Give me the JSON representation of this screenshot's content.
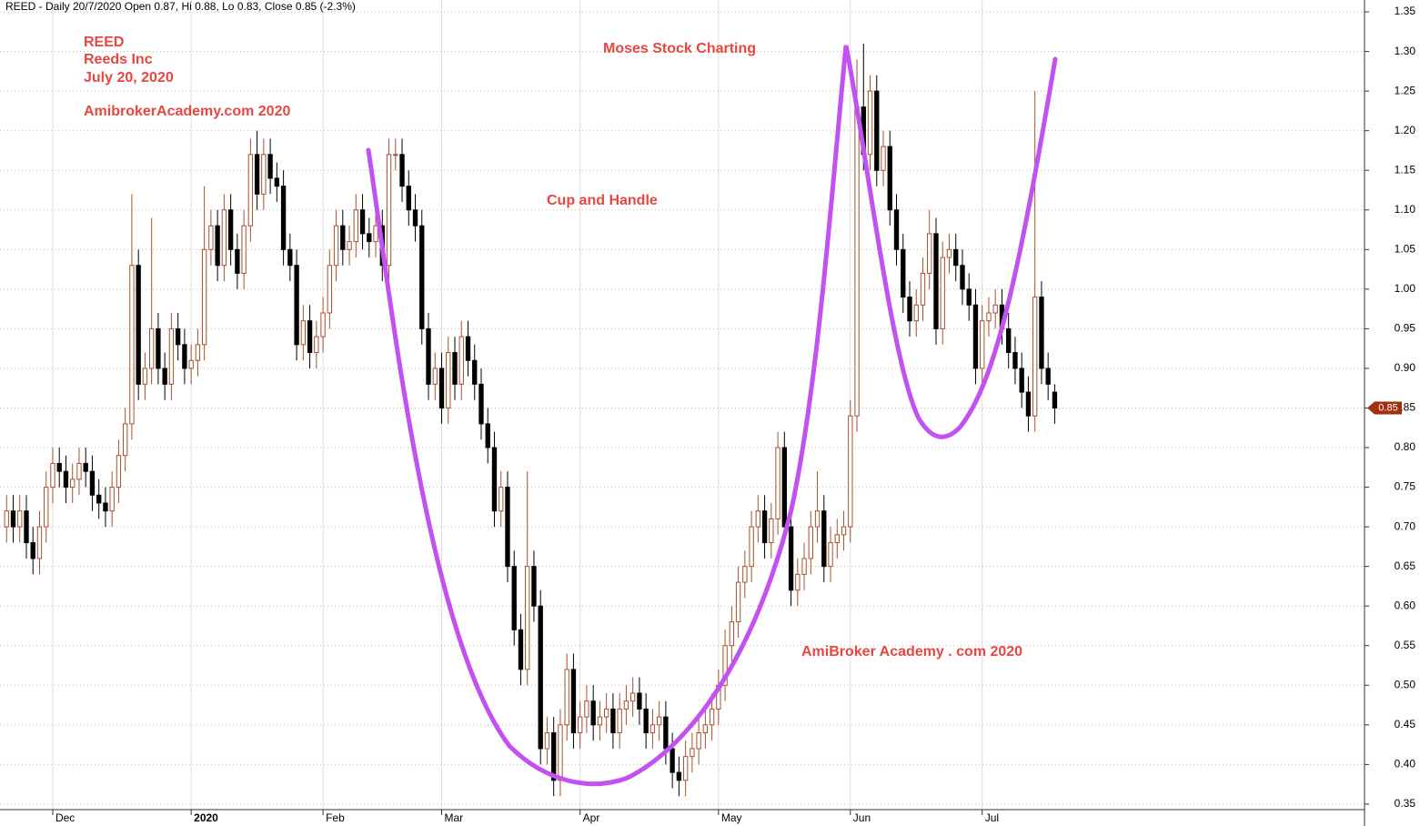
{
  "chart_data": {
    "type": "candlestick",
    "title": "REED - Daily 20/7/2020 Open 0.87, Hi 0.88, Lo 0.83, Close 0.85 (-2.3%)",
    "annotations": [
      "REED",
      "Reeds Inc",
      "July 20, 2020",
      "AmibrokerAcademy.com  2020",
      "Moses Stock Charting",
      "Cup and Handle",
      "AmiBroker Academy . com  2020"
    ],
    "up_color": "#a8502a",
    "down_color": "#000000",
    "grid": true,
    "open": [
      0.7,
      0.72,
      0.7,
      0.72,
      0.68,
      0.66,
      0.7,
      0.75,
      0.78,
      0.77,
      0.75,
      0.76,
      0.78,
      0.77,
      0.74,
      0.73,
      0.72,
      0.75,
      0.79,
      0.83,
      1.03,
      0.88,
      0.9,
      0.95,
      0.9,
      0.88,
      0.95,
      0.93,
      0.9,
      0.91,
      0.93,
      1.05,
      1.08,
      1.03,
      1.1,
      1.05,
      1.02,
      1.08,
      1.17,
      1.12,
      1.17,
      1.14,
      1.13,
      1.05,
      1.03,
      0.93,
      0.96,
      0.92,
      0.94,
      0.97,
      1.03,
      1.08,
      1.05,
      1.06,
      1.1,
      1.07,
      1.06,
      1.08,
      1.03,
      1.17,
      1.17,
      1.13,
      1.1,
      1.08,
      0.95,
      0.88,
      0.9,
      0.85,
      0.92,
      0.88,
      0.94,
      0.91,
      0.88,
      0.83,
      0.8,
      0.72,
      0.75,
      0.65,
      0.57,
      0.52,
      0.65,
      0.6,
      0.42,
      0.44,
      0.38,
      0.45,
      0.52,
      0.44,
      0.46,
      0.48,
      0.45,
      0.46,
      0.47,
      0.44,
      0.47,
      0.48,
      0.49,
      0.47,
      0.44,
      0.45,
      0.46,
      0.42,
      0.39,
      0.38,
      0.41,
      0.42,
      0.44,
      0.45,
      0.47,
      0.5,
      0.55,
      0.58,
      0.63,
      0.65,
      0.7,
      0.72,
      0.68,
      0.71,
      0.8,
      0.7,
      0.62,
      0.64,
      0.66,
      0.7,
      0.72,
      0.65,
      0.68,
      0.69,
      0.7,
      0.84,
      1.23,
      1.17,
      1.25,
      1.15,
      1.18,
      1.1,
      1.05,
      0.99,
      0.96,
      0.98,
      1.02,
      1.07,
      0.95,
      1.04,
      1.05,
      1.03,
      1.0,
      0.98,
      0.9,
      0.96,
      0.97,
      0.98,
      0.95,
      0.92,
      0.9,
      0.87,
      0.84,
      0.99,
      0.9,
      0.87
    ],
    "high": [
      0.74,
      0.74,
      0.74,
      0.74,
      0.7,
      0.72,
      0.77,
      0.8,
      0.8,
      0.79,
      0.78,
      0.8,
      0.8,
      0.79,
      0.76,
      0.75,
      0.77,
      0.81,
      0.85,
      1.12,
      1.05,
      0.92,
      1.09,
      0.97,
      0.92,
      0.97,
      0.97,
      0.95,
      0.93,
      0.95,
      1.13,
      1.1,
      1.1,
      1.12,
      1.12,
      1.07,
      1.1,
      1.19,
      1.2,
      1.19,
      1.19,
      1.16,
      1.15,
      1.07,
      1.05,
      0.98,
      0.98,
      0.96,
      0.99,
      1.05,
      1.1,
      1.1,
      1.08,
      1.12,
      1.12,
      1.09,
      1.1,
      1.1,
      1.19,
      1.19,
      1.19,
      1.15,
      1.12,
      1.1,
      0.97,
      0.92,
      0.92,
      0.94,
      0.94,
      0.96,
      0.96,
      0.93,
      0.9,
      0.85,
      0.82,
      0.77,
      0.77,
      0.67,
      0.59,
      0.77,
      0.67,
      0.62,
      0.46,
      0.46,
      0.47,
      0.54,
      0.54,
      0.48,
      0.5,
      0.5,
      0.48,
      0.49,
      0.49,
      0.49,
      0.5,
      0.51,
      0.51,
      0.49,
      0.47,
      0.48,
      0.48,
      0.44,
      0.41,
      0.43,
      0.44,
      0.46,
      0.47,
      0.49,
      0.52,
      0.57,
      0.6,
      0.65,
      0.67,
      0.72,
      0.74,
      0.74,
      0.73,
      0.82,
      0.82,
      0.72,
      0.66,
      0.68,
      0.72,
      0.77,
      0.74,
      0.7,
      0.71,
      0.72,
      0.86,
      1.29,
      1.31,
      1.27,
      1.27,
      1.2,
      1.2,
      1.12,
      1.07,
      1.01,
      1.0,
      1.04,
      1.1,
      1.09,
      1.06,
      1.07,
      1.07,
      1.05,
      1.02,
      1.0,
      0.98,
      0.99,
      1.0,
      1.0,
      0.97,
      0.94,
      0.92,
      0.89,
      1.25,
      1.01,
      0.92,
      0.88
    ],
    "low": [
      0.68,
      0.68,
      0.68,
      0.66,
      0.64,
      0.64,
      0.68,
      0.73,
      0.75,
      0.73,
      0.73,
      0.74,
      0.75,
      0.72,
      0.71,
      0.7,
      0.7,
      0.73,
      0.77,
      0.81,
      0.86,
      0.86,
      0.88,
      0.88,
      0.86,
      0.86,
      0.91,
      0.88,
      0.88,
      0.89,
      0.91,
      1.03,
      1.01,
      1.01,
      1.03,
      1.0,
      1.0,
      1.06,
      1.1,
      1.1,
      1.12,
      1.11,
      1.03,
      1.01,
      0.91,
      0.91,
      0.9,
      0.9,
      0.92,
      0.95,
      1.01,
      1.03,
      1.03,
      1.04,
      1.05,
      1.04,
      1.04,
      1.01,
      1.01,
      1.15,
      1.11,
      1.08,
      1.06,
      0.93,
      0.86,
      0.86,
      0.83,
      0.83,
      0.86,
      0.86,
      0.89,
      0.86,
      0.81,
      0.78,
      0.7,
      0.7,
      0.63,
      0.55,
      0.5,
      0.5,
      0.58,
      0.4,
      0.4,
      0.36,
      0.36,
      0.43,
      0.42,
      0.42,
      0.44,
      0.43,
      0.43,
      0.44,
      0.42,
      0.42,
      0.45,
      0.46,
      0.45,
      0.42,
      0.42,
      0.43,
      0.4,
      0.37,
      0.36,
      0.36,
      0.39,
      0.4,
      0.42,
      0.43,
      0.45,
      0.48,
      0.53,
      0.56,
      0.61,
      0.63,
      0.68,
      0.66,
      0.66,
      0.69,
      0.68,
      0.6,
      0.6,
      0.62,
      0.64,
      0.68,
      0.63,
      0.63,
      0.66,
      0.67,
      0.68,
      0.82,
      1.15,
      1.15,
      1.13,
      1.13,
      1.08,
      1.03,
      0.97,
      0.94,
      0.94,
      0.96,
      1.0,
      0.93,
      0.93,
      1.02,
      1.01,
      0.98,
      0.96,
      0.88,
      0.88,
      0.94,
      0.95,
      0.93,
      0.9,
      0.88,
      0.85,
      0.82,
      0.82,
      0.88,
      0.86,
      0.83
    ],
    "close": [
      0.72,
      0.7,
      0.72,
      0.68,
      0.66,
      0.7,
      0.75,
      0.78,
      0.77,
      0.75,
      0.76,
      0.78,
      0.77,
      0.74,
      0.73,
      0.72,
      0.75,
      0.79,
      0.83,
      1.03,
      0.88,
      0.9,
      0.95,
      0.9,
      0.88,
      0.95,
      0.93,
      0.9,
      0.91,
      0.93,
      1.05,
      1.08,
      1.03,
      1.1,
      1.05,
      1.02,
      1.08,
      1.17,
      1.12,
      1.17,
      1.14,
      1.13,
      1.05,
      1.03,
      0.93,
      0.96,
      0.92,
      0.94,
      0.97,
      1.03,
      1.08,
      1.05,
      1.06,
      1.1,
      1.07,
      1.06,
      1.08,
      1.03,
      1.17,
      1.17,
      1.13,
      1.1,
      1.08,
      0.95,
      0.88,
      0.9,
      0.85,
      0.92,
      0.88,
      0.94,
      0.91,
      0.88,
      0.83,
      0.8,
      0.72,
      0.75,
      0.65,
      0.57,
      0.52,
      0.65,
      0.6,
      0.42,
      0.44,
      0.38,
      0.45,
      0.52,
      0.44,
      0.46,
      0.48,
      0.45,
      0.46,
      0.47,
      0.44,
      0.47,
      0.48,
      0.49,
      0.47,
      0.44,
      0.45,
      0.46,
      0.42,
      0.39,
      0.38,
      0.41,
      0.42,
      0.44,
      0.45,
      0.47,
      0.5,
      0.55,
      0.58,
      0.63,
      0.65,
      0.7,
      0.72,
      0.68,
      0.71,
      0.8,
      0.7,
      0.62,
      0.64,
      0.66,
      0.7,
      0.72,
      0.65,
      0.68,
      0.69,
      0.7,
      0.84,
      1.23,
      1.17,
      1.25,
      1.15,
      1.18,
      1.1,
      1.05,
      0.99,
      0.96,
      0.98,
      1.02,
      1.07,
      0.95,
      1.04,
      1.05,
      1.03,
      1.0,
      0.98,
      0.9,
      0.96,
      0.97,
      0.98,
      0.95,
      0.92,
      0.9,
      0.87,
      0.84,
      0.99,
      0.9,
      0.88,
      0.85
    ],
    "xlim": [
      -1,
      206
    ],
    "xticks": [
      {
        "value": 7,
        "label": "Dec"
      },
      {
        "value": 28,
        "label": "2020"
      },
      {
        "value": 48,
        "label": "Feb"
      },
      {
        "value": 66,
        "label": "Mar"
      },
      {
        "value": 87,
        "label": "Apr"
      },
      {
        "value": 108,
        "label": "May"
      },
      {
        "value": 128,
        "label": "Jun"
      },
      {
        "value": 148,
        "label": "Jul"
      }
    ],
    "ylim": [
      0.343,
      1.365
    ],
    "yticks": [
      {
        "value": 0.35,
        "label": "0.35"
      },
      {
        "value": 0.4,
        "label": "0.40"
      },
      {
        "value": 0.45,
        "label": "0.45"
      },
      {
        "value": 0.5,
        "label": "0.50"
      },
      {
        "value": 0.55,
        "label": "0.55"
      },
      {
        "value": 0.6,
        "label": "0.60"
      },
      {
        "value": 0.65,
        "label": "0.65"
      },
      {
        "value": 0.7,
        "label": "0.70"
      },
      {
        "value": 0.75,
        "label": "0.75"
      },
      {
        "value": 0.8,
        "label": "0.80"
      },
      {
        "value": 0.85,
        "label": "0.85"
      },
      {
        "value": 0.9,
        "label": "0.90"
      },
      {
        "value": 0.95,
        "label": "0.95"
      },
      {
        "value": 1.0,
        "label": "1.00"
      },
      {
        "value": 1.05,
        "label": "1.05"
      },
      {
        "value": 1.1,
        "label": "1.10"
      },
      {
        "value": 1.15,
        "label": "1.15"
      },
      {
        "value": 1.2,
        "label": "1.20"
      },
      {
        "value": 1.25,
        "label": "1.25"
      },
      {
        "value": 1.3,
        "label": "1.30"
      },
      {
        "value": 1.35,
        "label": "1.35"
      }
    ]
  }
}
